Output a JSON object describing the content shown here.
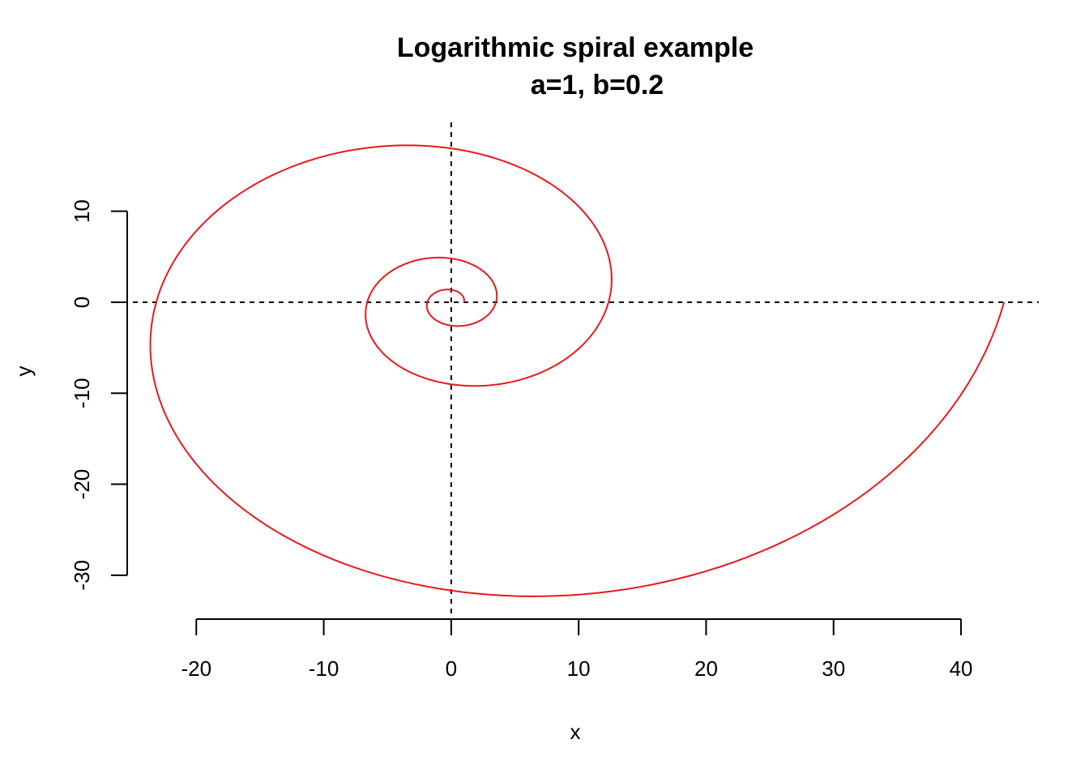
{
  "chart_data": {
    "type": "line",
    "title": "Logarithmic spiral example",
    "subtitle": "a=1, b=0.2",
    "xlabel": "x",
    "ylabel": "y",
    "xlim": [
      -26.5,
      46.1
    ],
    "ylim": [
      -34.2,
      20.3
    ],
    "x_ticks": [
      -20,
      -10,
      0,
      10,
      20,
      30,
      40
    ],
    "x_tick_labels": [
      "-20",
      "-10",
      "0",
      "10",
      "20",
      "30",
      "40"
    ],
    "y_ticks": [
      -30,
      -20,
      -10,
      0,
      10
    ],
    "y_tick_labels": [
      "-30",
      "-20",
      "-10",
      "0",
      "10"
    ],
    "grid": false,
    "reference_lines": [
      {
        "orientation": "horizontal",
        "value": 0,
        "style": "dashed",
        "color": "#000000"
      },
      {
        "orientation": "vertical",
        "value": 0,
        "style": "dashed",
        "color": "#000000"
      }
    ],
    "series": [
      {
        "color": "#e8191b",
        "formula": "r = a * exp(b * theta)",
        "a": 1,
        "b": 0.2,
        "theta_range": [
          0,
          18.85
        ],
        "points": 600
      }
    ]
  }
}
